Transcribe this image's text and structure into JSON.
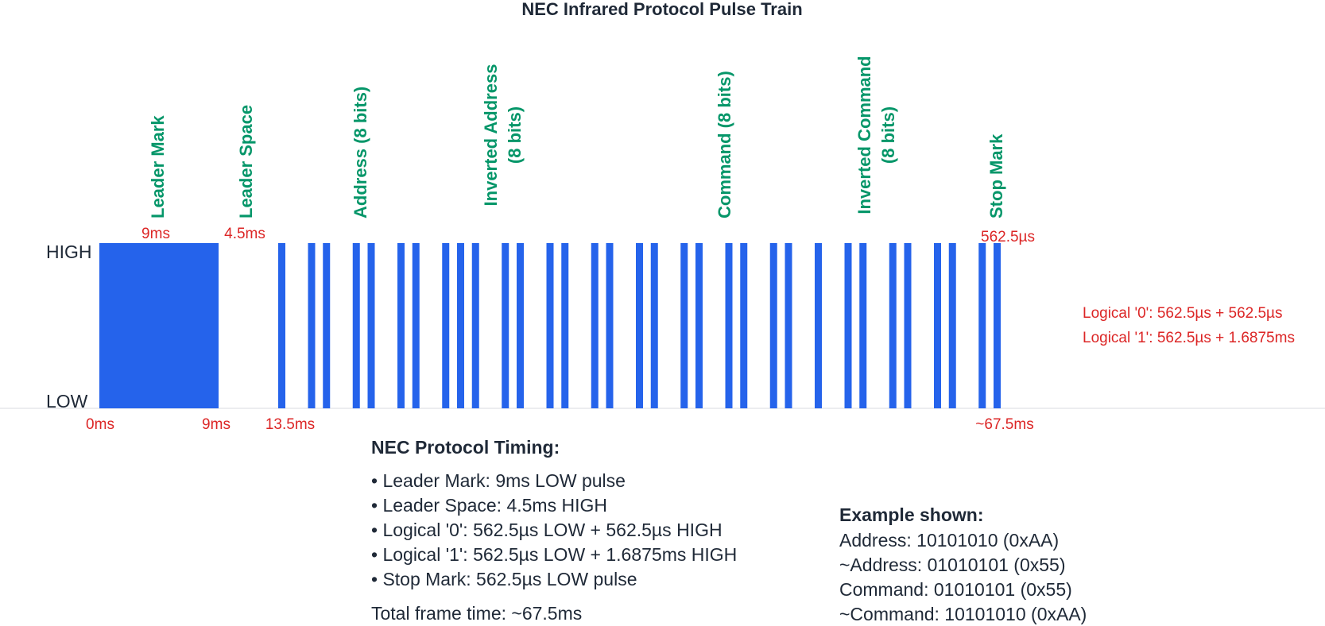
{
  "title": "NEC Infrared Protocol Pulse Train",
  "colors": {
    "pulse": "#2563eb",
    "section_label": "#059669",
    "timing": "#dc2626",
    "text": "#1f2937",
    "baseline": "#e5e7eb"
  },
  "levels": {
    "high": "HIGH",
    "low": "LOW"
  },
  "sections": [
    {
      "lines": [
        "Leader Mark"
      ]
    },
    {
      "lines": [
        "Leader Space"
      ]
    },
    {
      "lines": [
        "Address (8 bits)"
      ]
    },
    {
      "lines": [
        "Inverted Address",
        "(8 bits)"
      ]
    },
    {
      "lines": [
        "Command (8 bits)"
      ]
    },
    {
      "lines": [
        "Inverted Command",
        "(8 bits)"
      ]
    },
    {
      "lines": [
        "Stop Mark"
      ]
    }
  ],
  "timing_labels": {
    "leader_mark": "9ms",
    "leader_space": "4.5ms",
    "stop_mark": "562.5µs",
    "t0": "0ms",
    "t9": "9ms",
    "t13_5": "13.5ms",
    "t_end": "~67.5ms"
  },
  "bit_legend": [
    "Logical '0': 562.5µs + 562.5µs",
    "Logical '1': 562.5µs + 1.6875ms"
  ],
  "bits": {
    "address": "10101010",
    "inverted_address": "01010101",
    "command": "01010101",
    "inverted_command": "10101010"
  },
  "timing_panel": {
    "heading": "NEC Protocol Timing:",
    "items": [
      "• Leader Mark: 9ms LOW pulse",
      "• Leader Space: 4.5ms HIGH",
      "• Logical '0': 562.5µs LOW + 562.5µs HIGH",
      "• Logical '1': 562.5µs LOW + 1.6875ms HIGH",
      "• Stop Mark: 562.5µs LOW pulse"
    ],
    "total": "Total frame time: ~67.5ms"
  },
  "example_panel": {
    "heading": "Example shown:",
    "lines": [
      "Address: 10101010 (0xAA)",
      "~Address: 01010101 (0x55)",
      "Command: 01010101 (0x55)",
      "~Command: 10101010 (0xAA)"
    ]
  }
}
